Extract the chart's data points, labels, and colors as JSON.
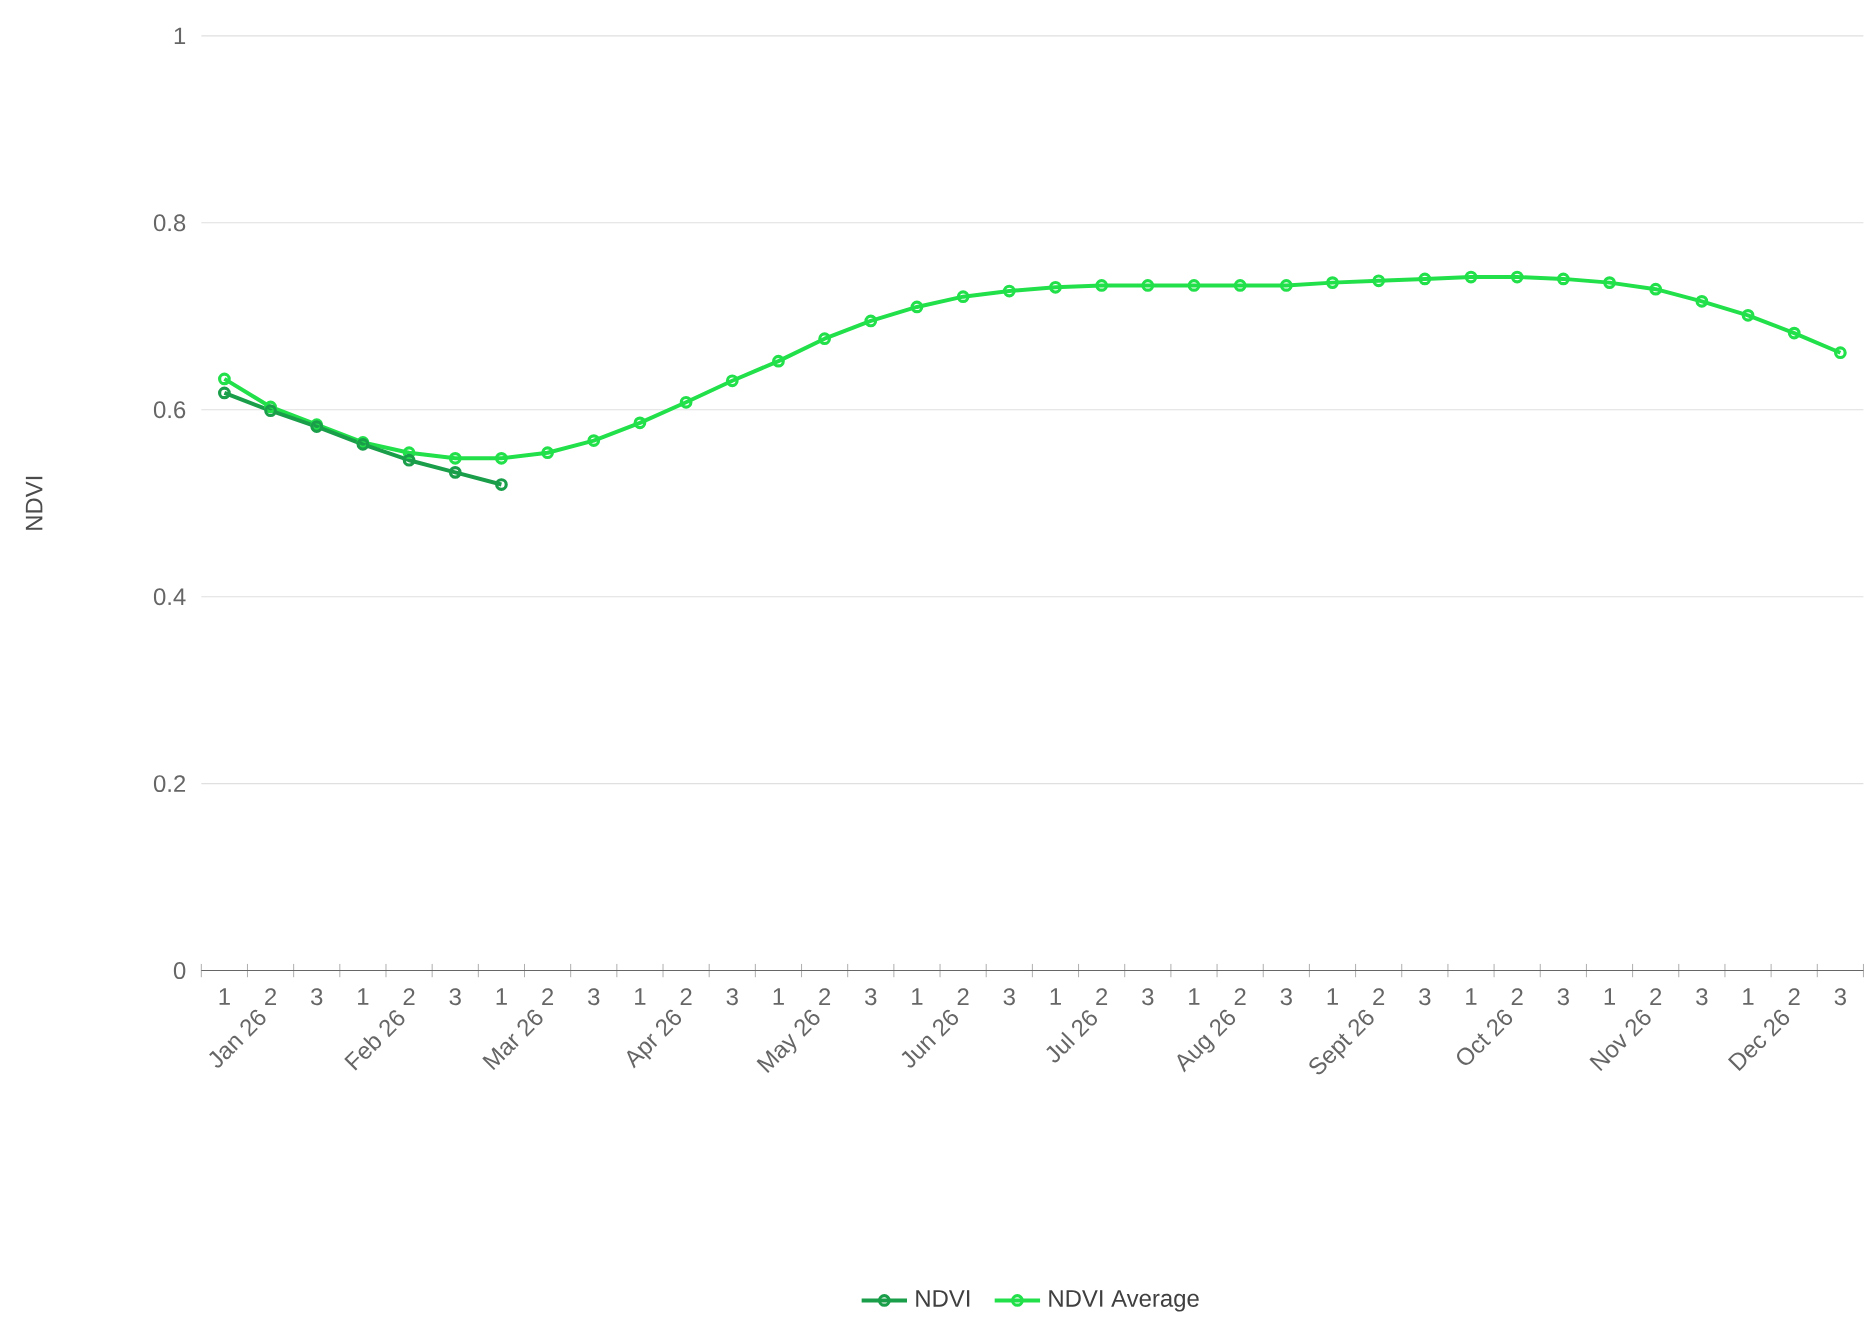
{
  "chart_data": {
    "type": "line",
    "ylabel": "NDVI",
    "categories": [
      "1",
      "2",
      "3",
      "1",
      "2",
      "3",
      "1",
      "2",
      "3",
      "1",
      "2",
      "3",
      "1",
      "2",
      "3",
      "1",
      "2",
      "3",
      "1",
      "2",
      "3",
      "1",
      "2",
      "3",
      "1",
      "2",
      "3",
      "1",
      "2",
      "3",
      "1",
      "2",
      "3",
      "1",
      "2",
      "3"
    ],
    "annotations": [
      "Jan 26",
      "Feb 26",
      "Mar 26",
      "Apr 26",
      "May 26",
      "Jun 26",
      "Jul 26",
      "Aug 26",
      "Sept 26",
      "Oct 26",
      "Nov 26",
      "Dec 26"
    ],
    "series": [
      {
        "name": "NDVI",
        "color": "#1a9e4a",
        "values": [
          0.618,
          0.599,
          0.582,
          0.563,
          0.546,
          0.533,
          0.52,
          null,
          null,
          null,
          null,
          null,
          null,
          null,
          null,
          null,
          null,
          null,
          null,
          null,
          null,
          null,
          null,
          null,
          null,
          null,
          null,
          null,
          null,
          null,
          null,
          null,
          null,
          null,
          null,
          null
        ]
      },
      {
        "name": "NDVI Average",
        "color": "#22e04a",
        "values": [
          0.633,
          0.603,
          0.584,
          0.565,
          0.554,
          0.548,
          0.548,
          0.554,
          0.567,
          0.586,
          0.608,
          0.631,
          0.652,
          0.676,
          0.695,
          0.71,
          0.721,
          0.727,
          0.731,
          0.733,
          0.733,
          0.733,
          0.733,
          0.733,
          0.736,
          0.738,
          0.74,
          0.742,
          0.742,
          0.74,
          0.736,
          0.729,
          0.716,
          0.701,
          0.682,
          0.661
        ]
      }
    ],
    "ylim": [
      0,
      1
    ],
    "yticks": [
      0,
      0.2,
      0.4,
      0.6,
      0.8,
      1
    ],
    "grid": "y",
    "legend": "bottom",
    "marker": "circle",
    "line_style": "solid"
  }
}
